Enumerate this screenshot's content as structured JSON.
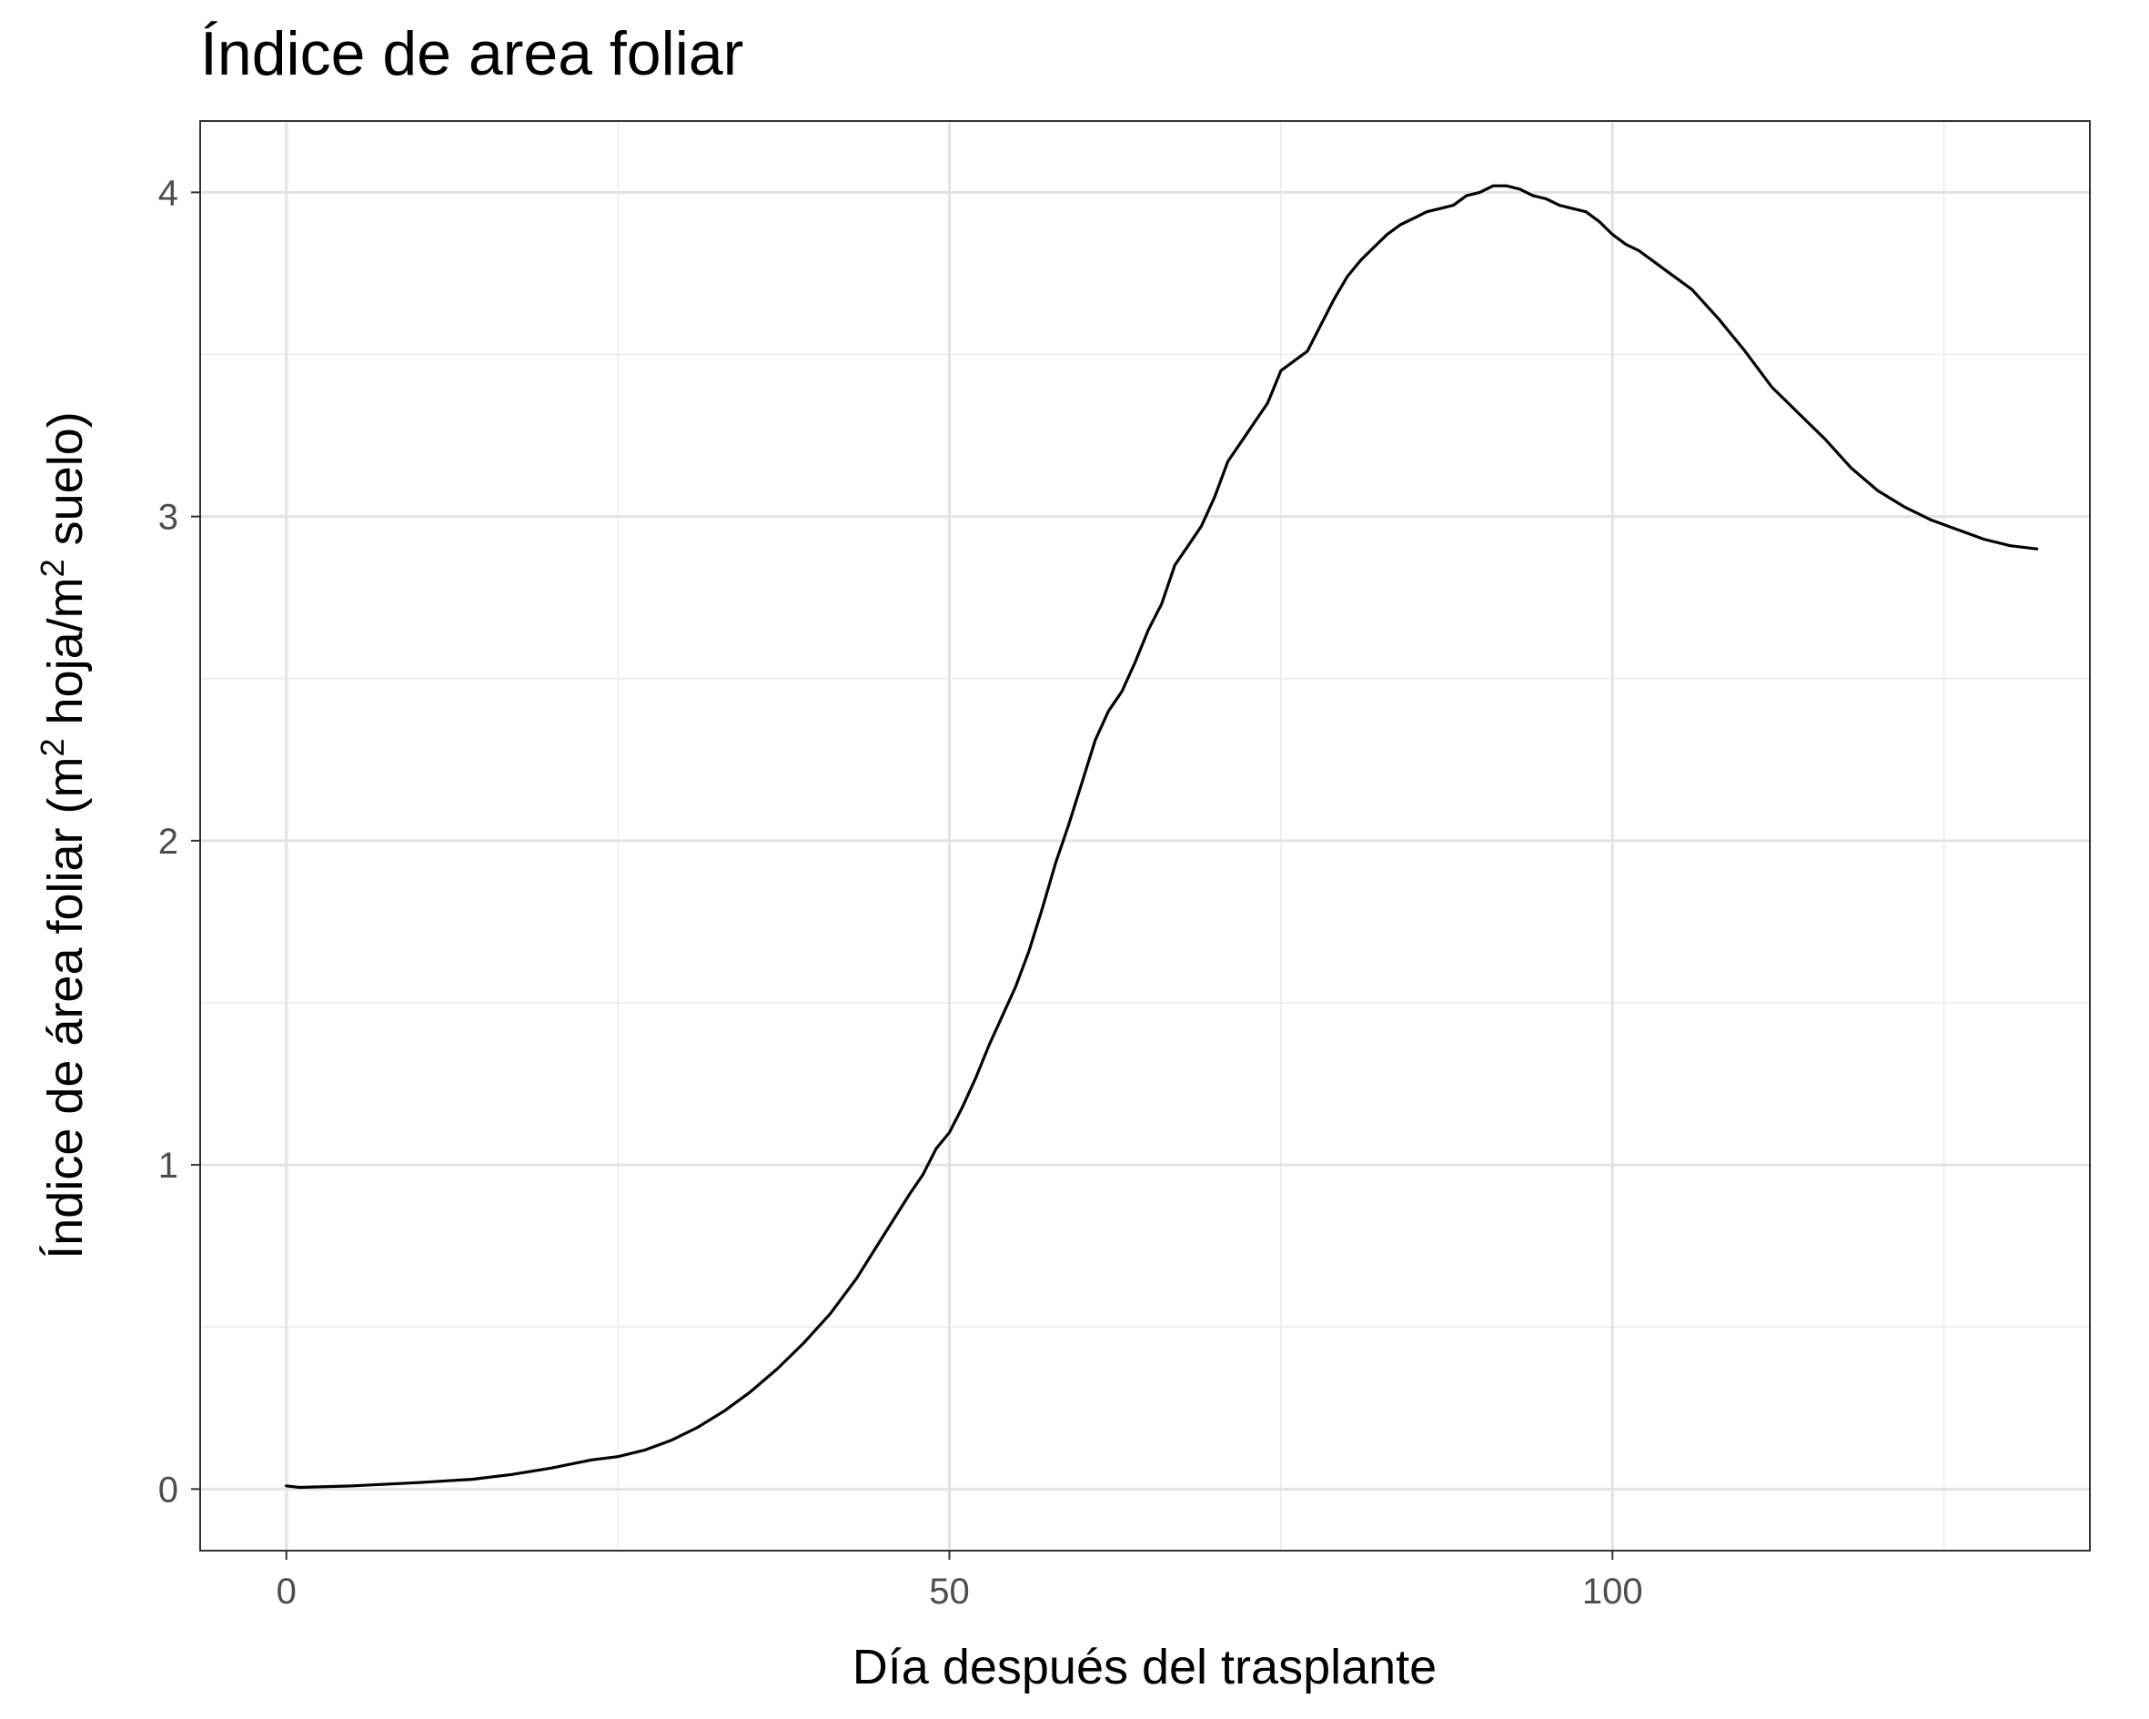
{
  "chart_data": {
    "type": "line",
    "title": "Índice de area foliar",
    "xlabel": "Día después del trasplante",
    "ylabel": {
      "part1": "Índice de área foliar (m",
      "sup1": "2",
      "part2": " hoja/m",
      "sup2": "2",
      "part3": " suelo)"
    },
    "xlim": [
      -6.5,
      136
    ],
    "ylim": [
      -0.19,
      4.22
    ],
    "x_ticks": [
      0,
      50,
      100
    ],
    "x_tick_labels": [
      "0",
      "50",
      "100"
    ],
    "x_minor_ticks": [
      25,
      75,
      125
    ],
    "y_ticks": [
      0,
      1,
      2,
      3,
      4
    ],
    "y_tick_labels": [
      "0",
      "1",
      "2",
      "3",
      "4"
    ],
    "y_minor_ticks": [
      0.5,
      1.5,
      2.5,
      3.5
    ],
    "grid": true,
    "line_color": "#000000",
    "series": [
      {
        "x": [
          0,
          1,
          5,
          10,
          14,
          17,
          20,
          23,
          25,
          27,
          29,
          31,
          33,
          35,
          37,
          39,
          41,
          43,
          45,
          47,
          48,
          49,
          50,
          51,
          52,
          53,
          54,
          55,
          56,
          57,
          58,
          59,
          60,
          61,
          62,
          63,
          64,
          65,
          66,
          67,
          68,
          69,
          70,
          71,
          72,
          73,
          74,
          75,
          76,
          77,
          78,
          79,
          80,
          81,
          82,
          83,
          84,
          85,
          86,
          87,
          88,
          89,
          90,
          91,
          92,
          93,
          94,
          95,
          96,
          97,
          98,
          99,
          100,
          101,
          102,
          103,
          104,
          105,
          106,
          108,
          110,
          112,
          114,
          116,
          118,
          120,
          122,
          124,
          126,
          128,
          130,
          132
        ],
        "y": [
          0.01,
          0.005,
          0.01,
          0.02,
          0.03,
          0.045,
          0.065,
          0.09,
          0.1,
          0.12,
          0.15,
          0.19,
          0.24,
          0.3,
          0.37,
          0.45,
          0.54,
          0.65,
          0.78,
          0.91,
          0.97,
          1.05,
          1.1,
          1.18,
          1.27,
          1.37,
          1.46,
          1.55,
          1.66,
          1.79,
          1.93,
          2.05,
          2.18,
          2.31,
          2.4,
          2.46,
          2.55,
          2.65,
          2.73,
          2.85,
          2.91,
          2.97,
          3.06,
          3.17,
          3.23,
          3.29,
          3.35,
          3.45,
          3.48,
          3.51,
          3.59,
          3.67,
          3.74,
          3.79,
          3.83,
          3.87,
          3.9,
          3.92,
          3.94,
          3.95,
          3.96,
          3.99,
          4.0,
          4.02,
          4.02,
          4.01,
          3.99,
          3.98,
          3.96,
          3.95,
          3.94,
          3.91,
          3.87,
          3.84,
          3.82,
          3.79,
          3.76,
          3.73,
          3.7,
          3.61,
          3.51,
          3.4,
          3.32,
          3.24,
          3.15,
          3.08,
          3.03,
          2.99,
          2.96,
          2.93,
          2.91,
          2.9
        ]
      }
    ]
  }
}
